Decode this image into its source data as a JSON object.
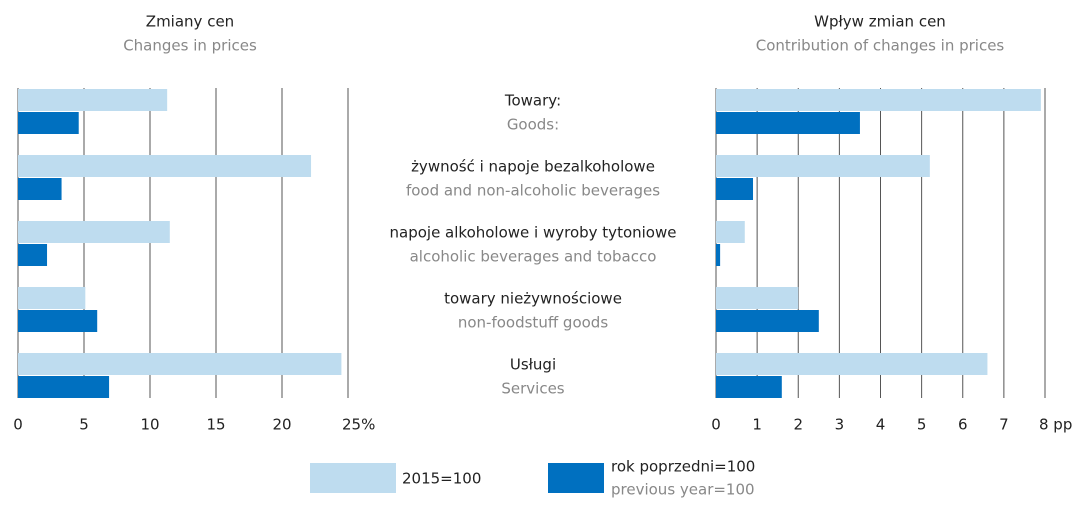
{
  "chart_data": [
    {
      "type": "bar",
      "orientation": "horizontal",
      "title": "Zmiany cen",
      "subtitle": "Changes in prices",
      "categories": [
        "Towary:",
        "żywność i napoje bezalkoholowe",
        "napoje alkoholowe i wyroby tytoniowe",
        "towary nieżywnościowe",
        "Usługi"
      ],
      "categories_en": [
        "Goods:",
        "food and non-alcoholic beverages",
        "alcoholic beverages and tobacco",
        "non-foodstuff goods",
        "Services"
      ],
      "series": [
        {
          "name": "2015=100",
          "color": "#bedcef",
          "values": [
            11.3,
            22.2,
            11.5,
            5.1,
            24.5
          ]
        },
        {
          "name": "rok poprzedni=100",
          "name_en": "previous year=100",
          "color": "#0070c0",
          "values": [
            4.6,
            3.3,
            2.2,
            6.0,
            6.9
          ]
        }
      ],
      "xlim": [
        0,
        25
      ],
      "xticks": [
        0,
        5,
        10,
        15,
        20,
        {
          "value": 25,
          "label": "25%"
        }
      ],
      "grid": true
    },
    {
      "type": "bar",
      "orientation": "horizontal",
      "title": "Wpływ zmian cen",
      "subtitle": "Contribution of changes in prices",
      "series": [
        {
          "color": "#bedcef",
          "values": [
            7.9,
            5.2,
            0.7,
            2.0,
            6.6
          ]
        },
        {
          "color": "#0070c0",
          "values": [
            3.5,
            0.9,
            0.1,
            2.5,
            1.6
          ]
        }
      ],
      "xlim": [
        0,
        8
      ],
      "xticks": [
        0,
        1,
        2,
        3,
        4,
        5,
        6,
        7,
        {
          "value": 8,
          "label": "8 pp"
        }
      ],
      "grid": true
    }
  ]
}
